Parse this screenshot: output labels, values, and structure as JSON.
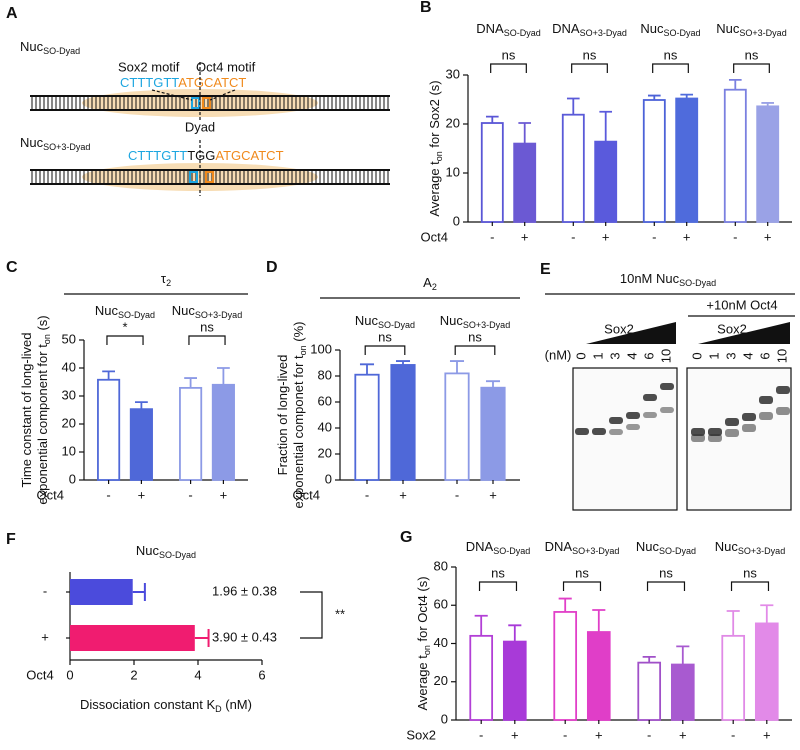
{
  "diagram": {
    "panel": "A",
    "constructs": [
      {
        "name": [
          "Nuc",
          "SO-Dyad"
        ],
        "sequence": [
          "CTTTGTT",
          "ATGCATCT"
        ]
      },
      {
        "name": [
          "Nuc",
          "SO+3-Dyad"
        ],
        "sequence": [
          "CTTTGTT",
          "TGG",
          "ATGCATCT"
        ]
      }
    ],
    "motifs": [
      "Sox2 motif",
      "Oct4 motif"
    ],
    "dyad": "Dyad"
  },
  "gel": {
    "panel": "E",
    "title": [
      "10nM Nuc",
      "SO-Dyad"
    ],
    "oct4_label": "+10nM Oct4",
    "titrant": "Sox2",
    "unit": "(nM)",
    "lanes": [
      0,
      1,
      3,
      4,
      6,
      10
    ]
  },
  "chart_data": [
    {
      "panel": "B",
      "type": "bar",
      "group_labels": [
        [
          "DNA",
          "SO-Dyad"
        ],
        [
          "DNA",
          "SO+3-Dyad"
        ],
        [
          "Nuc",
          "SO-Dyad"
        ],
        [
          "Nuc",
          "SO+3-Dyad"
        ]
      ],
      "y_label": [
        [
          "Average t",
          "on",
          " for Sox2 (s)"
        ]
      ],
      "factor": "Oct4",
      "series": [
        {
          "name": "-",
          "filled": false,
          "colors": [
            "#5a56d6",
            "#5a5ad8",
            "#4c62d8",
            "#7a80e0"
          ],
          "values": [
            20.2,
            21.9,
            24.9,
            27.0
          ],
          "errors": [
            1.3,
            3.3,
            0.9,
            2.0
          ]
        },
        {
          "name": "+",
          "filled": true,
          "colors": [
            "#6b59d3",
            "#5a5adc",
            "#4f6bdc",
            "#9aa2e6"
          ],
          "values": [
            16.0,
            16.4,
            25.2,
            23.6
          ],
          "errors": [
            4.2,
            6.1,
            0.8,
            0.7
          ]
        }
      ],
      "significance": [
        "ns",
        "ns",
        "ns",
        "ns"
      ],
      "ylim": [
        0,
        30
      ],
      "yticks": [
        0,
        10,
        20,
        30
      ]
    },
    {
      "panel": "C",
      "type": "bar",
      "title": [
        "τ",
        "2"
      ],
      "group_labels": [
        [
          "Nuc",
          "SO-Dyad"
        ],
        [
          "Nuc",
          "SO+3-Dyad"
        ]
      ],
      "y_label": [
        [
          "Time constant of long-lived"
        ],
        [
          "exponential component for t",
          "on",
          " (s)"
        ]
      ],
      "factor": "Oct4",
      "series": [
        {
          "name": "-",
          "filled": false,
          "colors": [
            "#4f68d8",
            "#8c9ae6"
          ],
          "values": [
            35.8,
            32.9
          ],
          "errors": [
            3.0,
            3.5
          ]
        },
        {
          "name": "+",
          "filled": true,
          "colors": [
            "#4f68d8",
            "#8c9ae6"
          ],
          "values": [
            25.3,
            34.0
          ],
          "errors": [
            2.5,
            6.0
          ]
        }
      ],
      "significance": [
        "*",
        "ns"
      ],
      "ylim": [
        0,
        50
      ],
      "yticks": [
        0,
        10,
        20,
        30,
        40,
        50
      ]
    },
    {
      "panel": "D",
      "type": "bar",
      "title": [
        "A",
        "2"
      ],
      "group_labels": [
        [
          "Nuc",
          "SO-Dyad"
        ],
        [
          "Nuc",
          "SO+3-Dyad"
        ]
      ],
      "y_label": [
        [
          "Fraction of long-lived"
        ],
        [
          "exponential componet for t",
          "on",
          " (%)"
        ]
      ],
      "factor": "Oct4",
      "series": [
        {
          "name": "-",
          "filled": false,
          "colors": [
            "#4f68d8",
            "#8c9ae6"
          ],
          "values": [
            81,
            82
          ],
          "errors": [
            8,
            9.5
          ]
        },
        {
          "name": "+",
          "filled": true,
          "colors": [
            "#4f68d8",
            "#8c9ae6"
          ],
          "values": [
            88.5,
            71
          ],
          "errors": [
            3,
            5
          ]
        }
      ],
      "significance": [
        "ns",
        "ns"
      ],
      "ylim": [
        0,
        100
      ],
      "yticks": [
        0,
        20,
        40,
        60,
        80,
        100
      ]
    },
    {
      "panel": "F",
      "type": "hbar",
      "title": [
        "Nuc",
        "SO-Dyad"
      ],
      "categories": [
        "-",
        "+"
      ],
      "values": [
        1.96,
        3.9
      ],
      "errors": [
        0.38,
        0.43
      ],
      "value_labels": [
        "1.96 ± 0.38",
        "3.90 ± 0.43"
      ],
      "colors": [
        "#4b4bdc",
        "#f01c70"
      ],
      "significance": "**",
      "y_label": "Oct4",
      "x_label": [
        "Dissociation constant  K",
        "D",
        " (nM)"
      ],
      "xlim": [
        0,
        6
      ],
      "xticks": [
        0,
        2,
        4,
        6
      ]
    },
    {
      "panel": "G",
      "type": "bar",
      "group_labels": [
        [
          "DNA",
          "SO-Dyad"
        ],
        [
          "DNA",
          "SO+3-Dyad"
        ],
        [
          "Nuc",
          "SO-Dyad"
        ],
        [
          "Nuc",
          "SO+3-Dyad"
        ]
      ],
      "y_label": [
        [
          "Average t",
          "on",
          "  for Oct4 (s)"
        ]
      ],
      "factor": "Sox2",
      "series": [
        {
          "name": "-",
          "filled": false,
          "colors": [
            "#b23fd6",
            "#e13fc8",
            "#a050c8",
            "#e08ae6"
          ],
          "values": [
            44,
            56.5,
            30,
            44
          ],
          "errors": [
            10.5,
            7,
            3,
            13
          ]
        },
        {
          "name": "+",
          "filled": true,
          "colors": [
            "#a83ad8",
            "#e03ec8",
            "#a85ad0",
            "#e28ae8"
          ],
          "values": [
            41,
            46,
            29,
            50.5
          ],
          "errors": [
            8.5,
            11.5,
            9.5,
            9.5
          ]
        }
      ],
      "significance": [
        "ns",
        "ns",
        "ns",
        "ns"
      ],
      "ylim": [
        0,
        80
      ],
      "yticks": [
        0,
        20,
        40,
        60,
        80
      ]
    }
  ]
}
